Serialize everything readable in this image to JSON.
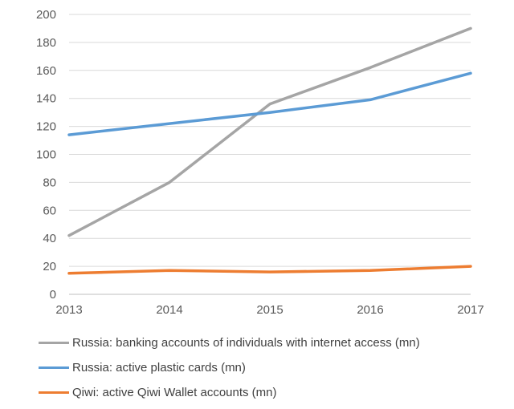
{
  "chart_data": {
    "type": "line",
    "title": "",
    "xlabel": "",
    "ylabel": "",
    "x": [
      "2013",
      "2014",
      "2015",
      "2016",
      "2017"
    ],
    "ylim": [
      0,
      200
    ],
    "yticks": [
      "0",
      "20",
      "40",
      "60",
      "80",
      "100",
      "120",
      "140",
      "160",
      "180",
      "200"
    ],
    "grid": true,
    "legend_position": "bottom",
    "series": [
      {
        "name": "Russia: banking accounts of individuals with internet access (mn)",
        "color": "#a5a5a5",
        "values": [
          42,
          80,
          136,
          162,
          190
        ]
      },
      {
        "name": "Russia: active plastic cards (mn)",
        "color": "#5b9bd5",
        "values": [
          114,
          122,
          130,
          139,
          158
        ]
      },
      {
        "name": "Qiwi: active Qiwi Wallet accounts (mn)",
        "color": "#ed7d31",
        "values": [
          15,
          17,
          16,
          17,
          20
        ]
      }
    ]
  }
}
